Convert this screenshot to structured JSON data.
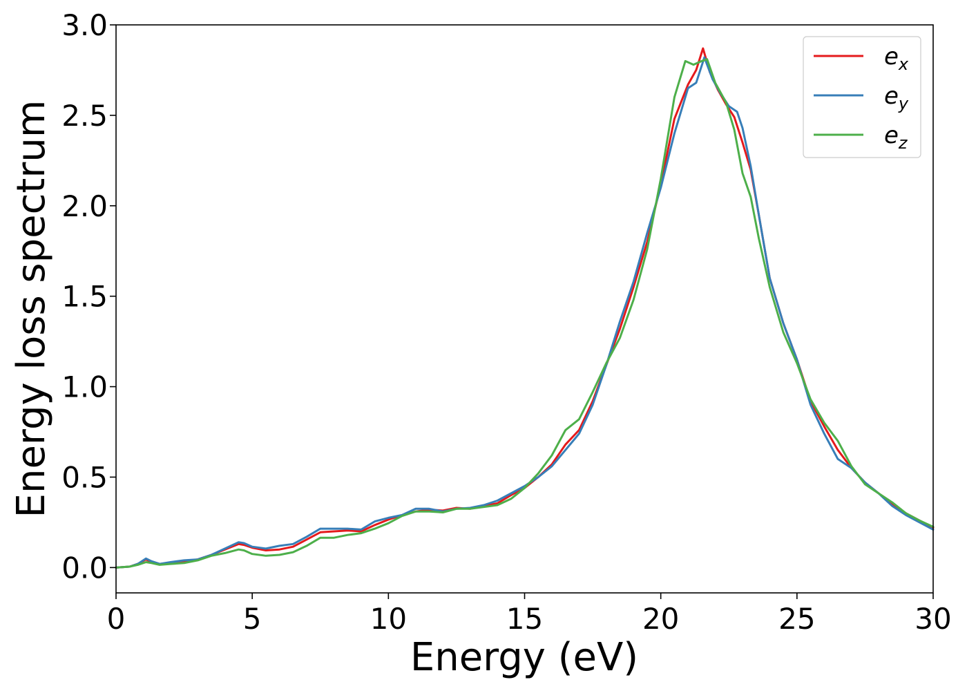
{
  "chart_data": {
    "type": "line",
    "xlabel": "Energy (eV)",
    "ylabel": "Energy loss spectrum",
    "xlim": [
      0,
      30
    ],
    "ylim": [
      -0.14,
      3.0
    ],
    "xticks": [
      0,
      5,
      10,
      15,
      20,
      25,
      30
    ],
    "yticks": [
      0.0,
      0.5,
      1.0,
      1.5,
      2.0,
      2.5,
      3.0
    ],
    "xtick_labels": [
      "0",
      "5",
      "10",
      "15",
      "20",
      "25",
      "30"
    ],
    "ytick_labels": [
      "0.0",
      "0.5",
      "1.0",
      "1.5",
      "2.0",
      "2.5",
      "3.0"
    ],
    "grid": false,
    "legend_position": "top-right",
    "series": [
      {
        "name": "e_x",
        "legend_base": "e",
        "legend_sub": "x",
        "color": "#e41a1c",
        "points": [
          [
            0,
            0.0
          ],
          [
            0.5,
            0.005
          ],
          [
            0.8,
            0.02
          ],
          [
            1.1,
            0.045
          ],
          [
            1.3,
            0.03
          ],
          [
            1.6,
            0.02
          ],
          [
            2.0,
            0.025
          ],
          [
            2.5,
            0.035
          ],
          [
            3.0,
            0.045
          ],
          [
            3.5,
            0.07
          ],
          [
            4.0,
            0.1
          ],
          [
            4.5,
            0.13
          ],
          [
            4.7,
            0.125
          ],
          [
            5.0,
            0.11
          ],
          [
            5.5,
            0.095
          ],
          [
            6.0,
            0.1
          ],
          [
            6.5,
            0.115
          ],
          [
            7.0,
            0.155
          ],
          [
            7.5,
            0.195
          ],
          [
            8.0,
            0.2
          ],
          [
            8.5,
            0.205
          ],
          [
            9.0,
            0.2
          ],
          [
            9.5,
            0.235
          ],
          [
            10.0,
            0.265
          ],
          [
            10.5,
            0.29
          ],
          [
            11.0,
            0.31
          ],
          [
            11.5,
            0.32
          ],
          [
            12.0,
            0.315
          ],
          [
            12.5,
            0.33
          ],
          [
            13.0,
            0.325
          ],
          [
            13.5,
            0.34
          ],
          [
            14.0,
            0.355
          ],
          [
            14.5,
            0.4
          ],
          [
            15.0,
            0.44
          ],
          [
            15.5,
            0.5
          ],
          [
            16.0,
            0.57
          ],
          [
            16.5,
            0.68
          ],
          [
            17.0,
            0.76
          ],
          [
            17.5,
            0.92
          ],
          [
            18.0,
            1.12
          ],
          [
            18.5,
            1.32
          ],
          [
            19.0,
            1.55
          ],
          [
            19.5,
            1.8
          ],
          [
            20.0,
            2.12
          ],
          [
            20.5,
            2.48
          ],
          [
            21.0,
            2.67
          ],
          [
            21.3,
            2.75
          ],
          [
            21.55,
            2.87
          ],
          [
            21.8,
            2.74
          ],
          [
            22.1,
            2.64
          ],
          [
            22.4,
            2.56
          ],
          [
            22.7,
            2.49
          ],
          [
            23.0,
            2.35
          ],
          [
            23.3,
            2.2
          ],
          [
            23.6,
            1.95
          ],
          [
            24.0,
            1.6
          ],
          [
            24.5,
            1.35
          ],
          [
            25.0,
            1.15
          ],
          [
            25.5,
            0.92
          ],
          [
            26.0,
            0.78
          ],
          [
            26.5,
            0.65
          ],
          [
            27.0,
            0.55
          ],
          [
            27.5,
            0.47
          ],
          [
            28.0,
            0.41
          ],
          [
            28.5,
            0.35
          ],
          [
            29.0,
            0.3
          ],
          [
            29.5,
            0.26
          ],
          [
            30.0,
            0.22
          ]
        ]
      },
      {
        "name": "e_y",
        "legend_base": "e",
        "legend_sub": "y",
        "color": "#377eb8",
        "points": [
          [
            0,
            0.0
          ],
          [
            0.5,
            0.005
          ],
          [
            0.8,
            0.02
          ],
          [
            1.1,
            0.05
          ],
          [
            1.3,
            0.035
          ],
          [
            1.6,
            0.02
          ],
          [
            2.0,
            0.03
          ],
          [
            2.5,
            0.04
          ],
          [
            3.0,
            0.045
          ],
          [
            3.5,
            0.07
          ],
          [
            4.0,
            0.105
          ],
          [
            4.5,
            0.14
          ],
          [
            4.7,
            0.135
          ],
          [
            5.0,
            0.115
          ],
          [
            5.5,
            0.105
          ],
          [
            6.0,
            0.12
          ],
          [
            6.5,
            0.13
          ],
          [
            7.0,
            0.17
          ],
          [
            7.5,
            0.215
          ],
          [
            8.0,
            0.215
          ],
          [
            8.5,
            0.215
          ],
          [
            9.0,
            0.21
          ],
          [
            9.5,
            0.255
          ],
          [
            10.0,
            0.275
          ],
          [
            10.5,
            0.29
          ],
          [
            11.0,
            0.325
          ],
          [
            11.5,
            0.325
          ],
          [
            12.0,
            0.31
          ],
          [
            12.5,
            0.325
          ],
          [
            13.0,
            0.33
          ],
          [
            13.5,
            0.345
          ],
          [
            14.0,
            0.37
          ],
          [
            14.5,
            0.41
          ],
          [
            15.0,
            0.45
          ],
          [
            15.5,
            0.5
          ],
          [
            16.0,
            0.56
          ],
          [
            16.5,
            0.65
          ],
          [
            17.0,
            0.74
          ],
          [
            17.5,
            0.9
          ],
          [
            18.0,
            1.12
          ],
          [
            18.5,
            1.36
          ],
          [
            19.0,
            1.58
          ],
          [
            19.5,
            1.85
          ],
          [
            20.0,
            2.1
          ],
          [
            20.5,
            2.4
          ],
          [
            21.0,
            2.65
          ],
          [
            21.3,
            2.68
          ],
          [
            21.6,
            2.82
          ],
          [
            21.9,
            2.7
          ],
          [
            22.2,
            2.62
          ],
          [
            22.5,
            2.55
          ],
          [
            22.8,
            2.52
          ],
          [
            23.0,
            2.43
          ],
          [
            23.3,
            2.22
          ],
          [
            23.6,
            1.95
          ],
          [
            24.0,
            1.6
          ],
          [
            24.5,
            1.35
          ],
          [
            25.0,
            1.15
          ],
          [
            25.5,
            0.9
          ],
          [
            26.0,
            0.74
          ],
          [
            26.5,
            0.6
          ],
          [
            27.0,
            0.55
          ],
          [
            27.5,
            0.47
          ],
          [
            28.0,
            0.41
          ],
          [
            28.5,
            0.34
          ],
          [
            29.0,
            0.29
          ],
          [
            29.5,
            0.25
          ],
          [
            30.0,
            0.21
          ]
        ]
      },
      {
        "name": "e_z",
        "legend_base": "e",
        "legend_sub": "z",
        "color": "#4daf4a",
        "points": [
          [
            0,
            0.0
          ],
          [
            0.5,
            0.005
          ],
          [
            0.8,
            0.015
          ],
          [
            1.1,
            0.03
          ],
          [
            1.3,
            0.025
          ],
          [
            1.6,
            0.015
          ],
          [
            2.0,
            0.02
          ],
          [
            2.5,
            0.025
          ],
          [
            3.0,
            0.04
          ],
          [
            3.5,
            0.065
          ],
          [
            4.0,
            0.08
          ],
          [
            4.5,
            0.1
          ],
          [
            4.7,
            0.095
          ],
          [
            5.0,
            0.075
          ],
          [
            5.5,
            0.065
          ],
          [
            6.0,
            0.07
          ],
          [
            6.5,
            0.085
          ],
          [
            7.0,
            0.12
          ],
          [
            7.5,
            0.165
          ],
          [
            8.0,
            0.165
          ],
          [
            8.5,
            0.18
          ],
          [
            9.0,
            0.19
          ],
          [
            9.5,
            0.215
          ],
          [
            10.0,
            0.245
          ],
          [
            10.5,
            0.285
          ],
          [
            11.0,
            0.31
          ],
          [
            11.5,
            0.31
          ],
          [
            12.0,
            0.305
          ],
          [
            12.5,
            0.325
          ],
          [
            13.0,
            0.325
          ],
          [
            13.5,
            0.335
          ],
          [
            14.0,
            0.345
          ],
          [
            14.5,
            0.38
          ],
          [
            15.0,
            0.44
          ],
          [
            15.5,
            0.52
          ],
          [
            16.0,
            0.62
          ],
          [
            16.5,
            0.76
          ],
          [
            17.0,
            0.82
          ],
          [
            17.5,
            0.97
          ],
          [
            18.0,
            1.13
          ],
          [
            18.5,
            1.27
          ],
          [
            19.0,
            1.48
          ],
          [
            19.5,
            1.76
          ],
          [
            20.0,
            2.15
          ],
          [
            20.5,
            2.6
          ],
          [
            20.9,
            2.8
          ],
          [
            21.2,
            2.78
          ],
          [
            21.5,
            2.8
          ],
          [
            21.7,
            2.81
          ],
          [
            22.0,
            2.68
          ],
          [
            22.4,
            2.57
          ],
          [
            22.7,
            2.42
          ],
          [
            23.0,
            2.18
          ],
          [
            23.3,
            2.05
          ],
          [
            23.6,
            1.82
          ],
          [
            24.0,
            1.55
          ],
          [
            24.5,
            1.3
          ],
          [
            25.0,
            1.13
          ],
          [
            25.5,
            0.93
          ],
          [
            26.0,
            0.8
          ],
          [
            26.5,
            0.7
          ],
          [
            27.0,
            0.56
          ],
          [
            27.5,
            0.46
          ],
          [
            28.0,
            0.41
          ],
          [
            28.5,
            0.36
          ],
          [
            29.0,
            0.3
          ],
          [
            29.5,
            0.26
          ],
          [
            30.0,
            0.225
          ]
        ]
      }
    ]
  }
}
